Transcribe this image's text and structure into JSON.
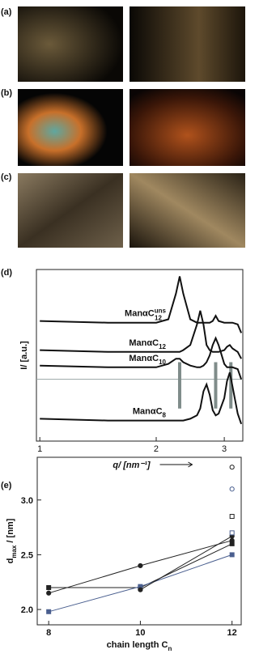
{
  "panel_labels": [
    "(a)",
    "(b)",
    "(c)",
    "(d)",
    "(e)"
  ],
  "chart_data": [
    {
      "type": "line",
      "x_log": true,
      "x_label": "q/ [nm⁻¹]",
      "y_label": "I/ [a.u.]",
      "x": [
        1,
        1.5,
        2,
        2.15,
        2.25,
        2.3,
        2.35,
        2.45,
        2.55,
        2.6,
        2.65,
        2.7,
        2.75,
        2.8,
        2.85,
        2.9,
        3.0,
        3.05,
        3.1,
        3.15,
        3.25,
        3.32
      ],
      "xlim": [
        0.98,
        3.35
      ],
      "ylim": [
        0,
        10
      ],
      "xticks": [
        1,
        2,
        3
      ],
      "series": [
        {
          "name": "ManαC",
          "sup": "uns",
          "sub": "12",
          "color": "#111111",
          "values": [
            7.0,
            6.9,
            6.9,
            7.1,
            8.6,
            9.6,
            8.6,
            7.1,
            6.9,
            6.9,
            6.9,
            6.9,
            6.9,
            7.0,
            7.3,
            7.0,
            6.9,
            6.9,
            6.9,
            6.9,
            6.8,
            6.3
          ]
        },
        {
          "name": "ManαC",
          "sub": "12",
          "color": "#111111",
          "values": [
            5.3,
            5.2,
            5.2,
            5.2,
            5.2,
            5.2,
            5.3,
            5.6,
            6.8,
            7.6,
            6.8,
            5.6,
            5.3,
            5.2,
            5.2,
            5.2,
            5.3,
            5.5,
            5.6,
            5.4,
            5.2,
            4.8
          ]
        },
        {
          "name": "ManαC",
          "sub": "10",
          "color": "#111111",
          "values": [
            4.4,
            4.3,
            4.3,
            4.5,
            4.8,
            4.8,
            4.6,
            4.4,
            4.3,
            4.3,
            4.4,
            4.6,
            5.0,
            5.6,
            6.0,
            5.6,
            4.5,
            4.3,
            4.3,
            4.3,
            4.2,
            3.6
          ]
        },
        {
          "name": "ManαC",
          "sub": "8",
          "color": "#111111",
          "values": [
            1.3,
            1.2,
            1.2,
            1.2,
            1.2,
            1.2,
            1.2,
            1.3,
            1.5,
            1.9,
            2.9,
            3.3,
            2.7,
            1.8,
            1.5,
            1.6,
            2.5,
            3.5,
            4.0,
            3.2,
            1.6,
            1.0
          ]
        }
      ],
      "reference_lines": {
        "color": "#7f8c8a",
        "x": [
          2.3,
          2.85,
          3.12
        ],
        "range": [
          1.9,
          4.6
        ]
      },
      "hline": {
        "color": "#9aa6a4",
        "value": 3.6
      }
    },
    {
      "type": "line",
      "x_label": {
        "text": "chain length C",
        "sub": "n"
      },
      "y_label": {
        "text": "d",
        "sub": "max",
        "rest": " / [nm]"
      },
      "x": [
        8,
        10,
        12
      ],
      "xlim": [
        7.75,
        12.2
      ],
      "ylim": [
        1.86,
        3.39
      ],
      "xticks": [
        8,
        10,
        12
      ],
      "yticks": [
        {
          "value": 2,
          "label": "2.0"
        },
        {
          "value": 2.5,
          "label": "2.5"
        },
        {
          "value": 3,
          "label": "3.0"
        }
      ],
      "series": [
        {
          "color": "#222222",
          "marker": "circle",
          "line": true,
          "values": [
            2.15,
            2.4,
            2.63
          ]
        },
        {
          "color": "#222222",
          "marker": "square",
          "line": true,
          "values": [
            2.2,
            2.2,
            2.6
          ]
        },
        {
          "color": "#4a5f8f",
          "marker": "square",
          "line": true,
          "values": [
            1.98,
            2.21,
            2.5
          ]
        },
        {
          "color": "#222222",
          "marker": "circle",
          "line": true,
          "values": [
            null,
            2.18,
            2.67
          ]
        },
        {
          "color": "#222222",
          "marker": "open-circle",
          "line": false,
          "values": [
            null,
            null,
            3.3
          ]
        },
        {
          "color": "#4a5f8f",
          "marker": "open-circle",
          "line": false,
          "values": [
            null,
            null,
            3.1
          ]
        },
        {
          "color": "#222222",
          "marker": "open-square",
          "line": false,
          "values": [
            null,
            null,
            2.85
          ]
        },
        {
          "color": "#4a5f8f",
          "marker": "open-square",
          "line": false,
          "values": [
            null,
            null,
            2.7
          ]
        }
      ]
    }
  ]
}
